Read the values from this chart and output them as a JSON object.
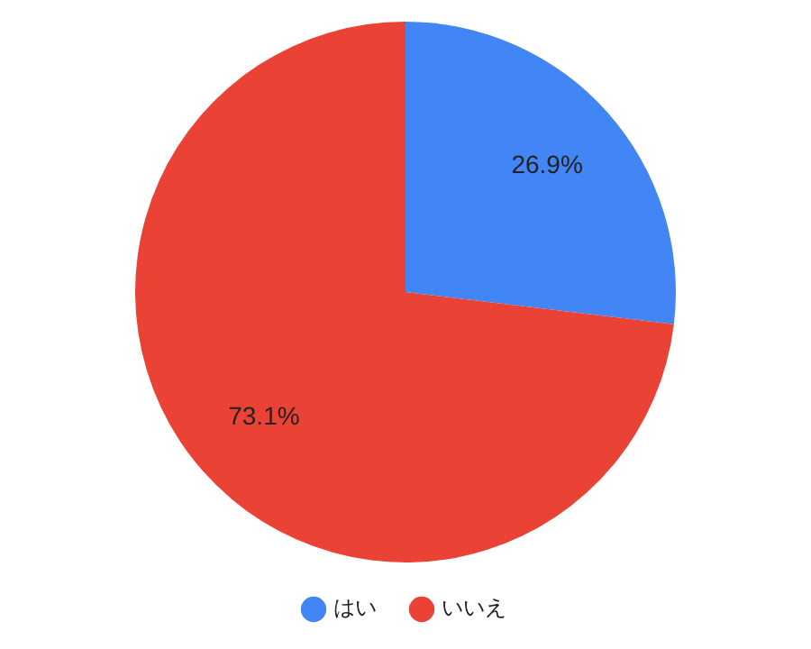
{
  "chart_data": {
    "type": "pie",
    "categories": [
      "はい",
      "いいえ"
    ],
    "values": [
      26.9,
      73.1
    ],
    "colors": [
      "#4285f4",
      "#ea4335"
    ],
    "value_labels": [
      "26.9%",
      "73.1%"
    ],
    "legend": "bottom"
  }
}
